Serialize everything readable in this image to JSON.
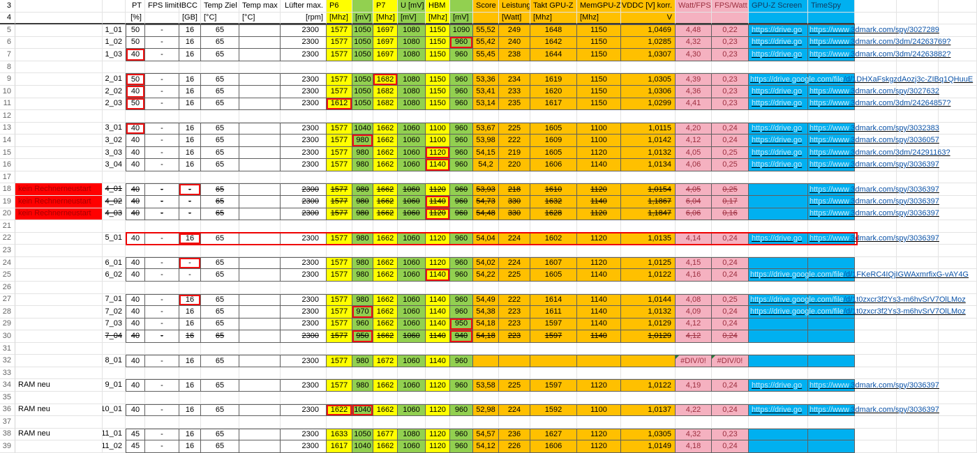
{
  "colors": {
    "yellow": "#FFFF00",
    "green": "#92D050",
    "orange": "#FFC000",
    "pink": "#F5B1C0",
    "cyan": "#00B0F0",
    "redfill": "#FF0000",
    "redtext": "#A80000",
    "maroon": "#9C2F3F",
    "link": "#0B53A8",
    "pale": "#C9E9F9"
  },
  "link_prefixes": {
    "spy_pale": "https://www",
    "drive_pale": "https://drive.google.com/file",
    "drive_trunc": "https://drive.go"
  },
  "columns": [
    {
      "key": "rownum",
      "w": 22
    },
    {
      "key": "label",
      "w": 125,
      "align": "l"
    },
    {
      "key": "runid",
      "w": 33,
      "align": "r"
    },
    {
      "key": "pt",
      "w": 28
    },
    {
      "key": "fps",
      "w": 49
    },
    {
      "key": "hbcc",
      "w": 31
    },
    {
      "key": "tz",
      "w": 55
    },
    {
      "key": "tm",
      "w": 59
    },
    {
      "key": "rpm",
      "w": 66,
      "align": "r"
    },
    {
      "key": "p6",
      "w": 37,
      "fill": "yellow"
    },
    {
      "key": "mv1",
      "w": 30,
      "fill": "green"
    },
    {
      "key": "p7",
      "w": 35,
      "fill": "yellow"
    },
    {
      "key": "u",
      "w": 40,
      "fill": "green"
    },
    {
      "key": "hbm",
      "w": 35,
      "fill": "yellow"
    },
    {
      "key": "mv2",
      "w": 33,
      "fill": "green"
    },
    {
      "key": "score",
      "w": 37,
      "fill": "orange"
    },
    {
      "key": "watt",
      "w": 45,
      "fill": "orange"
    },
    {
      "key": "takt",
      "w": 67,
      "fill": "orange"
    },
    {
      "key": "mem",
      "w": 63,
      "fill": "orange"
    },
    {
      "key": "vddc",
      "w": 78,
      "fill": "orange",
      "align": "r"
    },
    {
      "key": "wf",
      "w": 52,
      "fill": "pink"
    },
    {
      "key": "fw",
      "w": 53,
      "fill": "pink"
    },
    {
      "key": "gpuz",
      "w": 85,
      "fill": "cyan"
    },
    {
      "key": "spy",
      "w": 67,
      "fill": "cyan"
    },
    {
      "key": "x1",
      "w": 60
    },
    {
      "key": "x2",
      "w": 60
    },
    {
      "key": "x3",
      "w": 55
    }
  ],
  "header": {
    "r3": {
      "n": "3",
      "pt": "PT",
      "fps": "FPS limit",
      "hbcc": "HBCC",
      "tz": "Temp Ziel",
      "tm": "Temp max",
      "rpm": "Lüfter max.",
      "p6": "P6",
      "p7": "P7",
      "u": "U [mV]",
      "hbm": "HBM",
      "score": "Score",
      "watt": "Leistung",
      "takt": "Takt GPU-Z",
      "mem": "MemGPU-Z",
      "vddc": "VDDC [V] korr.",
      "wf": "Watt/FPS",
      "fw": "FPS/Watt",
      "gpuz": "GPU-Z Screen",
      "spy": "TimeSpy"
    },
    "r4": {
      "n": "4",
      "pt": "[%]",
      "hbcc": "[GB]",
      "tz": "[°C]",
      "tm": "[°C]",
      "rpm": "[rpm]",
      "p6": "[Mhz]",
      "mv1": "[mV]",
      "p7": "[Mhz]",
      "u": "[mV]",
      "hbm": "[Mhz]",
      "mv2": "[mV]",
      "watt": "[Watt]",
      "takt": "[Mhz]",
      "mem": "[Mhz]",
      "vddc": "V"
    }
  },
  "rows": [
    {
      "n": 5,
      "id": "1_01",
      "c": {
        "pt": "50",
        "fps": "-",
        "hbcc": "16",
        "tz": "65",
        "rpm": "2300",
        "p6": "1577",
        "mv1": "1050",
        "p7": "1697",
        "u": "1080",
        "hbm": "1150",
        "mv2": "1090",
        "score": "55,52",
        "watt": "249",
        "takt": "1648",
        "mem": "1150",
        "vddc": "1,0469",
        "wf": "4,48",
        "fw": "0,22"
      },
      "links": {
        "gpuz": true,
        "spy": ".3dmark.com/spy/3027289"
      }
    },
    {
      "n": 6,
      "id": "1_02",
      "red": [
        "mv2"
      ],
      "c": {
        "pt": "50",
        "fps": "-",
        "hbcc": "16",
        "tz": "65",
        "rpm": "2300",
        "p6": "1577",
        "mv1": "1050",
        "p7": "1697",
        "u": "1080",
        "hbm": "1150",
        "mv2": "960",
        "score": "55,42",
        "watt": "240",
        "takt": "1642",
        "mem": "1150",
        "vddc": "1,0285",
        "wf": "4,32",
        "fw": "0,23"
      },
      "links": {
        "gpuz": true,
        "spy": ".3dmark.com/3dm/24263769?"
      }
    },
    {
      "n": 7,
      "id": "1_03",
      "red": [
        "pt"
      ],
      "c": {
        "pt": "40",
        "fps": "-",
        "hbcc": "16",
        "tz": "65",
        "rpm": "2300",
        "p6": "1577",
        "mv1": "1050",
        "p7": "1697",
        "u": "1080",
        "hbm": "1150",
        "mv2": "960",
        "score": "55,45",
        "watt": "238",
        "takt": "1644",
        "mem": "1150",
        "vddc": "1,0307",
        "wf": "4,30",
        "fw": "0,23"
      },
      "links": {
        "gpuz": true,
        "spy": ".3dmark.com/3dm/24263882?"
      }
    },
    {
      "n": 8,
      "empty": true
    },
    {
      "n": 9,
      "id": "2_01",
      "red": [
        "pt",
        "p7"
      ],
      "c": {
        "pt": "50",
        "fps": "-",
        "hbcc": "16",
        "tz": "65",
        "rpm": "2300",
        "p6": "1577",
        "mv1": "1050",
        "p7": "1682",
        "u": "1080",
        "hbm": "1150",
        "mv2": "960",
        "score": "53,36",
        "watt": "234",
        "takt": "1619",
        "mem": "1150",
        "vddc": "1,0305",
        "wf": "4,39",
        "fw": "0,23"
      },
      "links": {
        "drive": "/d/1DHXaFskgzdAozj3c-ZIBq1QHuuE"
      }
    },
    {
      "n": 10,
      "id": "2_02",
      "red": [
        "pt"
      ],
      "c": {
        "pt": "40",
        "fps": "-",
        "hbcc": "16",
        "tz": "65",
        "rpm": "2300",
        "p6": "1577",
        "mv1": "1050",
        "p7": "1682",
        "u": "1080",
        "hbm": "1150",
        "mv2": "960",
        "score": "53,41",
        "watt": "233",
        "takt": "1620",
        "mem": "1150",
        "vddc": "1,0306",
        "wf": "4,36",
        "fw": "0,23"
      },
      "links": {
        "gpuz": true,
        "spy": ".3dmark.com/spy/3027632"
      }
    },
    {
      "n": 11,
      "id": "2_03",
      "red": [
        "pt",
        "p6"
      ],
      "c": {
        "pt": "50",
        "fps": "-",
        "hbcc": "16",
        "tz": "65",
        "rpm": "2300",
        "p6": "1612",
        "mv1": "1050",
        "p7": "1682",
        "u": "1080",
        "hbm": "1150",
        "mv2": "960",
        "score": "53,14",
        "watt": "235",
        "takt": "1617",
        "mem": "1150",
        "vddc": "1,0299",
        "wf": "4,41",
        "fw": "0,23"
      },
      "links": {
        "gpuz": true,
        "spy": ".3dmark.com/3dm/24264857?"
      }
    },
    {
      "n": 12,
      "empty": true
    },
    {
      "n": 13,
      "id": "3_01",
      "red": [
        "pt"
      ],
      "c": {
        "pt": "40",
        "fps": "-",
        "hbcc": "16",
        "tz": "65",
        "rpm": "2300",
        "p6": "1577",
        "mv1": "1040",
        "p7": "1662",
        "u": "1060",
        "hbm": "1100",
        "mv2": "960",
        "score": "53,67",
        "watt": "225",
        "takt": "1605",
        "mem": "1100",
        "vddc": "1,0115",
        "wf": "4,20",
        "fw": "0,24"
      },
      "links": {
        "gpuz": true,
        "spy": ".3dmark.com/spy/3032383"
      }
    },
    {
      "n": 14,
      "id": "3_02",
      "red": [
        "mv1"
      ],
      "c": {
        "pt": "40",
        "fps": "-",
        "hbcc": "16",
        "tz": "65",
        "rpm": "2300",
        "p6": "1577",
        "mv1": "980",
        "p7": "1662",
        "u": "1060",
        "hbm": "1100",
        "mv2": "960",
        "score": "53,98",
        "watt": "222",
        "takt": "1609",
        "mem": "1100",
        "vddc": "1,0142",
        "wf": "4,12",
        "fw": "0,24"
      },
      "links": {
        "gpuz": true,
        "spy": ".3dmark.com/spy/3036057"
      }
    },
    {
      "n": 15,
      "id": "3_03",
      "red": [
        "hbm"
      ],
      "c": {
        "pt": "40",
        "fps": "-",
        "hbcc": "16",
        "tz": "65",
        "rpm": "2300",
        "p6": "1577",
        "mv1": "980",
        "p7": "1662",
        "u": "1060",
        "hbm": "1120",
        "mv2": "960",
        "score": "54,15",
        "watt": "219",
        "takt": "1605",
        "mem": "1120",
        "vddc": "1,0132",
        "wf": "4,05",
        "fw": "0,25"
      },
      "links": {
        "gpuz": true,
        "spy": ".3dmark.com/3dm/24291163?"
      }
    },
    {
      "n": 16,
      "id": "3_04",
      "red": [
        "hbm"
      ],
      "c": {
        "pt": "40",
        "fps": "-",
        "hbcc": "16",
        "tz": "65",
        "rpm": "2300",
        "p6": "1577",
        "mv1": "980",
        "p7": "1662",
        "u": "1060",
        "hbm": "1140",
        "mv2": "960",
        "score": "54,2",
        "watt": "220",
        "takt": "1606",
        "mem": "1140",
        "vddc": "1,0134",
        "wf": "4,06",
        "fw": "0,25"
      },
      "links": {
        "gpuz": true,
        "spy": ".3dmark.com/spy/3036397"
      }
    },
    {
      "n": 17,
      "empty": true
    },
    {
      "n": 18,
      "id": "4_01",
      "label": "kein Rechnerneustart",
      "labelRed": true,
      "struck": true,
      "red": [
        "hbcc"
      ],
      "c": {
        "pt": "40",
        "fps": "-",
        "hbcc": "-",
        "tz": "65",
        "rpm": "2300",
        "p6": "1577",
        "mv1": "980",
        "p7": "1662",
        "u": "1060",
        "hbm": "1120",
        "mv2": "960",
        "score": "53,93",
        "watt": "218",
        "takt": "1610",
        "mem": "1120",
        "vddc": "1,0154",
        "wf": "4,05",
        "fw": "0,25"
      },
      "links": {
        "spy": ".3dmark.com/spy/3036397"
      }
    },
    {
      "n": 19,
      "id": "4_02",
      "label": "kein Rechnerneustart",
      "labelRed": true,
      "struck": true,
      "red": [
        "hbm"
      ],
      "c": {
        "pt": "40",
        "fps": "-",
        "hbcc": "-",
        "tz": "65",
        "rpm": "2300",
        "p6": "1577",
        "mv1": "980",
        "p7": "1662",
        "u": "1060",
        "hbm": "1140",
        "mv2": "960",
        "score": "54,73",
        "watt": "330",
        "takt": "1632",
        "mem": "1140",
        "vddc": "1,1867",
        "wf": "6,04",
        "fw": "0,17"
      },
      "links": {
        "spy": ".3dmark.com/spy/3036397"
      }
    },
    {
      "n": 20,
      "id": "4_03",
      "label": "kein Rechnerneustart",
      "labelRed": true,
      "struck": true,
      "red": [
        "hbm"
      ],
      "c": {
        "pt": "40",
        "fps": "-",
        "hbcc": "-",
        "tz": "65",
        "rpm": "2300",
        "p6": "1577",
        "mv1": "980",
        "p7": "1662",
        "u": "1060",
        "hbm": "1120",
        "mv2": "960",
        "score": "54,48",
        "watt": "330",
        "takt": "1628",
        "mem": "1120",
        "vddc": "1,1847",
        "wf": "6,06",
        "fw": "0,16"
      },
      "links": {
        "spy": ".3dmark.com/spy/3036397"
      }
    },
    {
      "n": 21,
      "empty": true
    },
    {
      "n": 22,
      "id": "5_01",
      "outline": true,
      "red": [
        "hbcc"
      ],
      "c": {
        "pt": "40",
        "fps": "-",
        "hbcc": "16",
        "tz": "65",
        "rpm": "2300",
        "p6": "1577",
        "mv1": "980",
        "p7": "1662",
        "u": "1060",
        "hbm": "1120",
        "mv2": "960",
        "score": "54,04",
        "watt": "224",
        "takt": "1602",
        "mem": "1120",
        "vddc": "1,0135",
        "wf": "4,14",
        "fw": "0,24"
      },
      "links": {
        "gpuz": true,
        "spy": ".3dmark.com/spy/3036397"
      }
    },
    {
      "n": 23,
      "empty": true
    },
    {
      "n": 24,
      "id": "6_01",
      "red": [
        "hbcc"
      ],
      "c": {
        "pt": "40",
        "fps": "-",
        "hbcc": "-",
        "tz": "65",
        "rpm": "2300",
        "p6": "1577",
        "mv1": "980",
        "p7": "1662",
        "u": "1060",
        "hbm": "1120",
        "mv2": "960",
        "score": "54,02",
        "watt": "224",
        "takt": "1607",
        "mem": "1120",
        "vddc": "1,0125",
        "wf": "4,15",
        "fw": "0,24"
      }
    },
    {
      "n": 25,
      "id": "6_02",
      "red": [
        "hbm"
      ],
      "c": {
        "pt": "40",
        "fps": "-",
        "hbcc": "-",
        "tz": "65",
        "rpm": "2300",
        "p6": "1577",
        "mv1": "980",
        "p7": "1662",
        "u": "1060",
        "hbm": "1140",
        "mv2": "960",
        "score": "54,22",
        "watt": "225",
        "takt": "1605",
        "mem": "1140",
        "vddc": "1,0122",
        "wf": "4,16",
        "fw": "0,24"
      },
      "links": {
        "drive": "/d/1FKeRC4IQjIGWAxmrfixG-vAY4G"
      }
    },
    {
      "n": 26,
      "empty": true
    },
    {
      "n": 27,
      "id": "7_01",
      "red": [
        "hbcc"
      ],
      "c": {
        "pt": "40",
        "fps": "-",
        "hbcc": "16",
        "tz": "65",
        "rpm": "2300",
        "p6": "1577",
        "mv1": "980",
        "p7": "1662",
        "u": "1060",
        "hbm": "1140",
        "mv2": "960",
        "score": "54,49",
        "watt": "222",
        "takt": "1614",
        "mem": "1140",
        "vddc": "1,0144",
        "wf": "4,08",
        "fw": "0,25"
      },
      "links": {
        "drive": "/d/1t0zxcr3f2Ys3-m6hvSrV7OlLMoz"
      }
    },
    {
      "n": 28,
      "id": "7_02",
      "red": [
        "mv1"
      ],
      "c": {
        "pt": "40",
        "fps": "-",
        "hbcc": "16",
        "tz": "65",
        "rpm": "2300",
        "p6": "1577",
        "mv1": "970",
        "p7": "1662",
        "u": "1060",
        "hbm": "1140",
        "mv2": "960",
        "score": "54,38",
        "watt": "223",
        "takt": "1611",
        "mem": "1140",
        "vddc": "1,0132",
        "wf": "4,09",
        "fw": "0,24"
      },
      "links": {
        "drive": "/d/1t0zxcr3f2Ys3-m6hvSrV7OlLMoz"
      }
    },
    {
      "n": 29,
      "id": "7_03",
      "red": [
        "mv2"
      ],
      "c": {
        "pt": "40",
        "fps": "-",
        "hbcc": "16",
        "tz": "65",
        "rpm": "2300",
        "p6": "1577",
        "mv1": "960",
        "p7": "1662",
        "u": "1060",
        "hbm": "1140",
        "mv2": "950",
        "score": "54,18",
        "watt": "223",
        "takt": "1597",
        "mem": "1140",
        "vddc": "1,0129",
        "wf": "4,12",
        "fw": "0,24"
      }
    },
    {
      "n": 30,
      "id": "7_04",
      "struck": true,
      "red": [
        "mv1",
        "mv2"
      ],
      "c": {
        "pt": "40",
        "fps": "-",
        "hbcc": "16",
        "tz": "65",
        "rpm": "2300",
        "p6": "1577",
        "mv1": "950",
        "p7": "1662",
        "u": "1060",
        "hbm": "1140",
        "mv2": "940",
        "score": "54,18",
        "watt": "223",
        "takt": "1597",
        "mem": "1140",
        "vddc": "1,0129",
        "wf": "4,12",
        "fw": "0,24"
      }
    },
    {
      "n": 31,
      "empty": true
    },
    {
      "n": 32,
      "id": "8_01",
      "err": true,
      "c": {
        "pt": "40",
        "fps": "-",
        "hbcc": "16",
        "tz": "65",
        "rpm": "2300",
        "p6": "1577",
        "mv1": "980",
        "p7": "1672",
        "u": "1060",
        "hbm": "1140",
        "mv2": "960",
        "score": "",
        "watt": "",
        "takt": "",
        "mem": "",
        "vddc": "",
        "wf": "#DIV/0!",
        "fw": "#DIV/0!"
      }
    },
    {
      "n": 33,
      "empty": true
    },
    {
      "n": 34,
      "id": "9_01",
      "label": "RAM neu",
      "c": {
        "pt": "40",
        "fps": "-",
        "hbcc": "16",
        "tz": "65",
        "rpm": "2300",
        "p6": "1577",
        "mv1": "980",
        "p7": "1662",
        "u": "1060",
        "hbm": "1120",
        "mv2": "960",
        "score": "53,58",
        "watt": "225",
        "takt": "1597",
        "mem": "1120",
        "vddc": "1,0122",
        "wf": "4,19",
        "fw": "0,24"
      },
      "links": {
        "gpuz": true,
        "spy": ".3dmark.com/spy/3036397"
      }
    },
    {
      "n": 35,
      "empty": true
    },
    {
      "n": 36,
      "id": "10_01",
      "label": "RAM neu",
      "red": [
        "p6",
        "mv1"
      ],
      "c": {
        "pt": "40",
        "fps": "-",
        "hbcc": "16",
        "tz": "65",
        "rpm": "2300",
        "p6": "1622",
        "mv1": "1040",
        "p7": "1662",
        "u": "1060",
        "hbm": "1120",
        "mv2": "960",
        "score": "52,98",
        "watt": "224",
        "takt": "1592",
        "mem": "1100",
        "vddc": "1,0137",
        "wf": "4,22",
        "fw": "0,24"
      },
      "links": {
        "gpuz": true,
        "spy": ".3dmark.com/spy/3036397"
      }
    },
    {
      "n": 37,
      "empty": true
    },
    {
      "n": 38,
      "id": "11_01",
      "label": "RAM neu",
      "c": {
        "pt": "45",
        "fps": "-",
        "hbcc": "16",
        "tz": "65",
        "rpm": "2300",
        "p6": "1633",
        "mv1": "1050",
        "p7": "1677",
        "u": "1080",
        "hbm": "1120",
        "mv2": "960",
        "score": "54,57",
        "watt": "236",
        "takt": "1627",
        "mem": "1120",
        "vddc": "1,0305",
        "wf": "4,32",
        "fw": "0,23"
      }
    },
    {
      "n": 39,
      "id": "11_02",
      "c": {
        "pt": "45",
        "fps": "-",
        "hbcc": "16",
        "tz": "65",
        "rpm": "2300",
        "p6": "1617",
        "mv1": "1040",
        "p7": "1662",
        "u": "1060",
        "hbm": "1120",
        "mv2": "960",
        "score": "54,12",
        "watt": "226",
        "takt": "1606",
        "mem": "1120",
        "vddc": "1,0149",
        "wf": "4,18",
        "fw": "0,24"
      }
    }
  ]
}
